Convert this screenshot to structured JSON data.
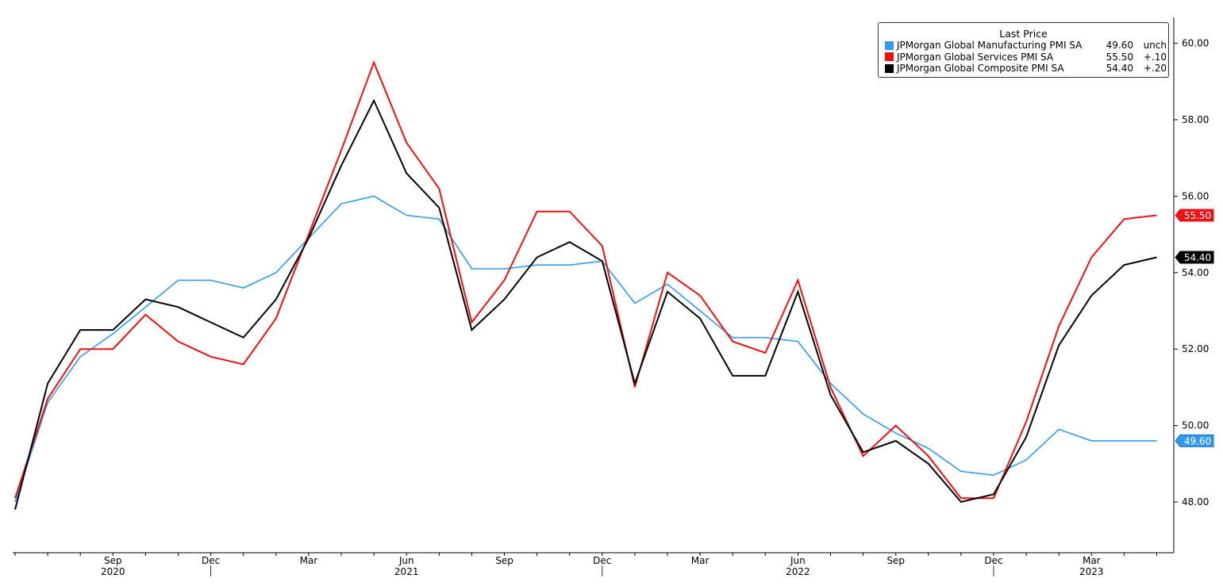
{
  "chart_data": {
    "type": "line",
    "x": [
      "2020-06",
      "2020-07",
      "2020-08",
      "2020-09",
      "2020-10",
      "2020-11",
      "2020-12",
      "2021-01",
      "2021-02",
      "2021-03",
      "2021-04",
      "2021-05",
      "2021-06",
      "2021-07",
      "2021-08",
      "2021-09",
      "2021-10",
      "2021-11",
      "2021-12",
      "2022-01",
      "2022-02",
      "2022-03",
      "2022-04",
      "2022-05",
      "2022-06",
      "2022-07",
      "2022-08",
      "2022-09",
      "2022-10",
      "2022-11",
      "2022-12",
      "2023-01",
      "2023-02",
      "2023-03",
      "2023-04",
      "2023-05"
    ],
    "series": [
      {
        "name": "JPMorgan Global Manufacturing PMI SA",
        "color": "#3399ee",
        "values": [
          48.0,
          50.6,
          51.8,
          52.4,
          53.1,
          53.8,
          53.8,
          53.6,
          54.0,
          54.9,
          55.8,
          56.0,
          55.5,
          55.4,
          54.1,
          54.1,
          54.2,
          54.2,
          54.3,
          53.2,
          53.7,
          53.0,
          52.3,
          52.3,
          52.2,
          51.1,
          50.3,
          49.8,
          49.4,
          48.8,
          48.7,
          49.1,
          49.9,
          49.6,
          49.6,
          49.6
        ]
      },
      {
        "name": "JPMorgan Global Services PMI SA",
        "color": "#ee1111",
        "values": [
          48.1,
          50.7,
          52.0,
          52.0,
          52.9,
          52.2,
          51.8,
          51.6,
          52.8,
          55.0,
          57.2,
          59.5,
          57.4,
          56.2,
          52.7,
          53.8,
          55.6,
          55.6,
          54.7,
          51.0,
          54.0,
          53.4,
          52.2,
          51.9,
          53.8,
          51.0,
          49.2,
          50.0,
          49.2,
          48.1,
          48.1,
          50.1,
          52.6,
          54.4,
          55.4,
          55.5
        ]
      },
      {
        "name": "JPMorgan Global Composite PMI SA",
        "color": "#000000",
        "values": [
          47.8,
          51.1,
          52.5,
          52.5,
          53.3,
          53.1,
          52.7,
          52.3,
          53.3,
          54.9,
          56.8,
          58.5,
          56.6,
          55.7,
          52.5,
          53.3,
          54.4,
          54.8,
          54.3,
          51.1,
          53.5,
          52.8,
          51.3,
          51.3,
          53.5,
          50.8,
          49.3,
          49.6,
          49.0,
          48.0,
          48.2,
          49.7,
          52.1,
          53.4,
          54.2,
          54.4
        ]
      }
    ],
    "ylim": [
      46.8,
      60.6
    ],
    "y_ticks": [
      "48.00",
      "50.00",
      "52.00",
      "54.00",
      "56.00",
      "58.00",
      "60.00"
    ],
    "x_month_labels": [
      "Sep",
      "Dec",
      "Mar",
      "Jun",
      "Sep",
      "Dec",
      "Mar",
      "Jun",
      "Sep",
      "Dec",
      "Mar"
    ],
    "x_year_labels": [
      "2020",
      "2021",
      "2022",
      "2023"
    ],
    "last_value_tags": [
      {
        "label": "55.50",
        "value": 55.5,
        "color": "#ee1111"
      },
      {
        "label": "54.40",
        "value": 54.4,
        "color": "#000000"
      },
      {
        "label": "49.60",
        "value": 49.6,
        "color": "#3399ee"
      }
    ],
    "grid": false,
    "legend_position": "top-right"
  },
  "legend": {
    "title": "Last Price",
    "items": [
      {
        "name": "JPMorgan Global Manufacturing PMI SA",
        "value": "49.60",
        "change": "unch",
        "color": "#3399ee"
      },
      {
        "name": "JPMorgan Global Services PMI SA",
        "value": "55.50",
        "change": "+.10",
        "color": "#ee1111"
      },
      {
        "name": "JPMorgan Global Composite PMI SA",
        "value": "54.40",
        "change": "+.20",
        "color": "#000000"
      }
    ]
  }
}
